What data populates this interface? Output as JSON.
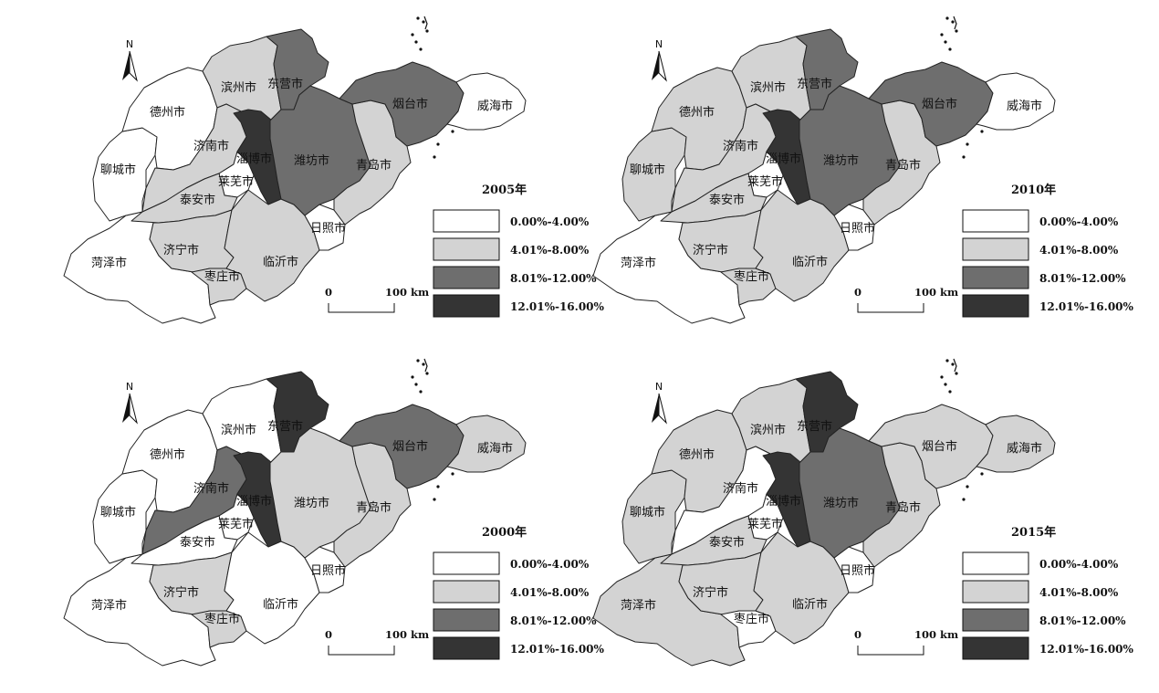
{
  "legend": {
    "classes": [
      {
        "label": "0.00%-4.00%",
        "color": "#ffffff"
      },
      {
        "label": "4.01%-8.00%",
        "color": "#d3d3d3"
      },
      {
        "label": "8.01%-12.00%",
        "color": "#6e6e6e"
      },
      {
        "label": "12.01%-16.00%",
        "color": "#343434"
      }
    ]
  },
  "scale_bar": {
    "start": "0",
    "end": "100 km"
  },
  "north_arrow": {
    "label": "N"
  },
  "maps": [
    {
      "year": "2005年",
      "classes": {
        "菏泽市": 0,
        "聊城市": 0,
        "德州市": 0,
        "滨州市": 1,
        "东营市": 2,
        "济南市": 1,
        "淄博市": 3,
        "莱芜市": 0,
        "泰安市": 1,
        "济宁市": 1,
        "枣庄市": 1,
        "临沂市": 1,
        "日照市": 0,
        "潍坊市": 2,
        "青岛市": 1,
        "烟台市": 2,
        "威海市": 0
      }
    },
    {
      "year": "2010年",
      "classes": {
        "菏泽市": 0,
        "聊城市": 1,
        "德州市": 1,
        "滨州市": 1,
        "东营市": 2,
        "济南市": 1,
        "淄博市": 3,
        "莱芜市": 0,
        "泰安市": 1,
        "济宁市": 1,
        "枣庄市": 1,
        "临沂市": 1,
        "日照市": 0,
        "潍坊市": 2,
        "青岛市": 1,
        "烟台市": 2,
        "威海市": 0
      }
    },
    {
      "year": "2000年",
      "classes": {
        "菏泽市": 0,
        "聊城市": 0,
        "德州市": 0,
        "滨州市": 0,
        "东营市": 3,
        "济南市": 2,
        "淄博市": 3,
        "莱芜市": 0,
        "泰安市": 0,
        "济宁市": 1,
        "枣庄市": 1,
        "临沂市": 0,
        "日照市": 0,
        "潍坊市": 1,
        "青岛市": 1,
        "烟台市": 2,
        "威海市": 1
      }
    },
    {
      "year": "2015年",
      "classes": {
        "菏泽市": 1,
        "聊城市": 1,
        "德州市": 1,
        "滨州市": 1,
        "东营市": 3,
        "济南市": 0,
        "淄博市": 3,
        "莱芜市": 0,
        "泰安市": 1,
        "济宁市": 1,
        "枣庄市": 0,
        "临沂市": 1,
        "日照市": 0,
        "潍坊市": 2,
        "青岛市": 1,
        "烟台市": 1,
        "威海市": 1
      }
    }
  ]
}
